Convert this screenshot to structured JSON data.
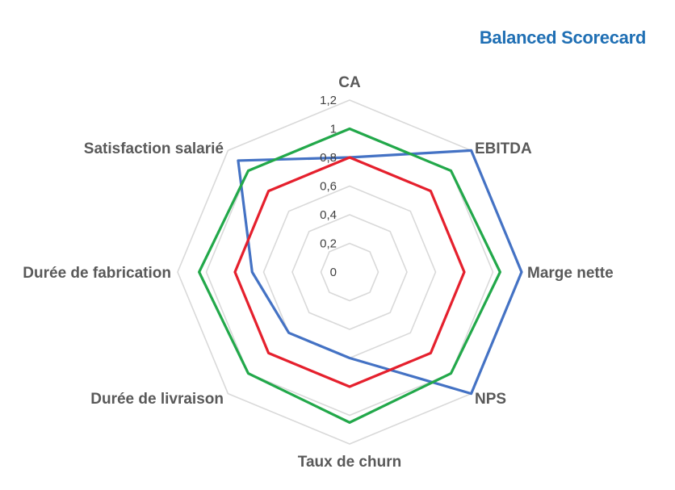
{
  "chart_data": {
    "type": "radar",
    "title": "Balanced Scorecard",
    "categories": [
      "CA",
      "EBITDA",
      "Marge nette",
      "NPS",
      "Taux de churn",
      "Durée de livraison",
      "Durée de fabrication",
      "Satisfaction salarié"
    ],
    "rlim": [
      0,
      1.2
    ],
    "ticks": [
      "0",
      "0,2",
      "0,4",
      "0,6",
      "0,8",
      "1",
      "1,2"
    ],
    "grid": true,
    "legend": "none",
    "series": [
      {
        "color": "#4472c4",
        "values": [
          0.8,
          1.2,
          1.2,
          1.2,
          0.6,
          0.6,
          0.68,
          1.1
        ]
      },
      {
        "color": "#22a84a",
        "values": [
          1.0,
          1.0,
          1.05,
          1.0,
          1.05,
          1.0,
          1.05,
          1.0
        ]
      },
      {
        "color": "#e5202d",
        "values": [
          0.8,
          0.8,
          0.8,
          0.8,
          0.8,
          0.8,
          0.8,
          0.8
        ]
      }
    ]
  }
}
